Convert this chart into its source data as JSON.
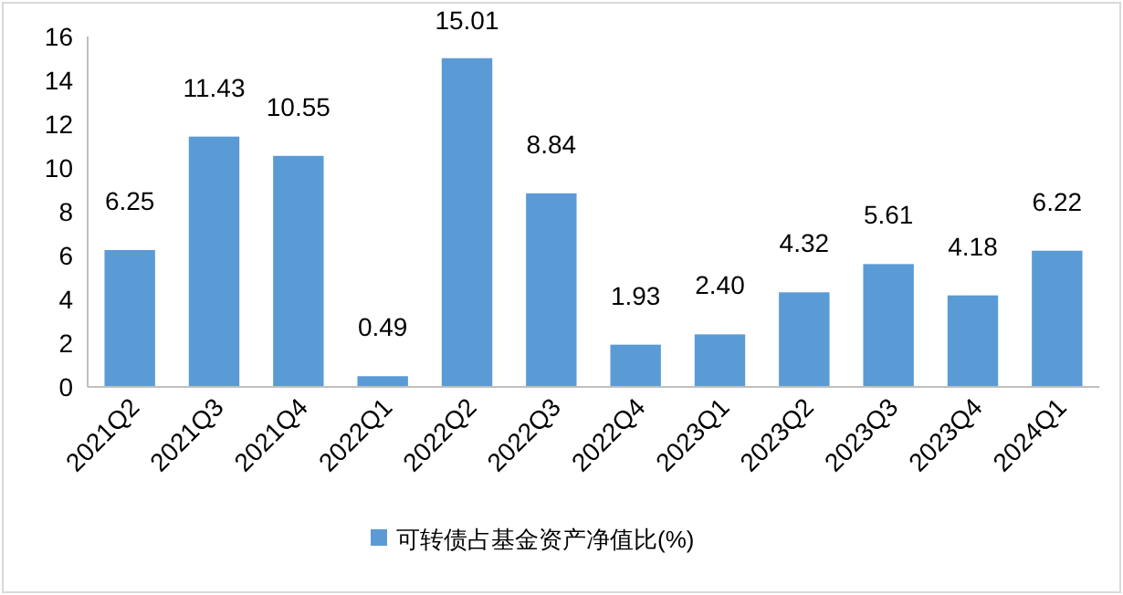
{
  "chart_data": {
    "type": "bar",
    "categories": [
      "2021Q2",
      "2021Q3",
      "2021Q4",
      "2022Q1",
      "2022Q2",
      "2022Q3",
      "2022Q4",
      "2023Q1",
      "2023Q2",
      "2023Q3",
      "2023Q4",
      "2024Q1"
    ],
    "series": [
      {
        "name": "可转债占基金资产净值比(%)",
        "color": "#5b9bd5",
        "values": [
          6.25,
          11.43,
          10.55,
          0.49,
          15.01,
          8.84,
          1.93,
          2.4,
          4.32,
          5.61,
          4.18,
          6.22
        ],
        "value_labels": [
          "6.25",
          "11.43",
          "10.55",
          "0.49",
          "15.01",
          "8.84",
          "1.93",
          "2.40",
          "4.32",
          "5.61",
          "4.18",
          "6.22"
        ]
      }
    ],
    "ylim": [
      0,
      16
    ],
    "yticks": [
      0,
      2,
      4,
      6,
      8,
      10,
      12,
      14,
      16
    ],
    "legend": "bottom"
  }
}
